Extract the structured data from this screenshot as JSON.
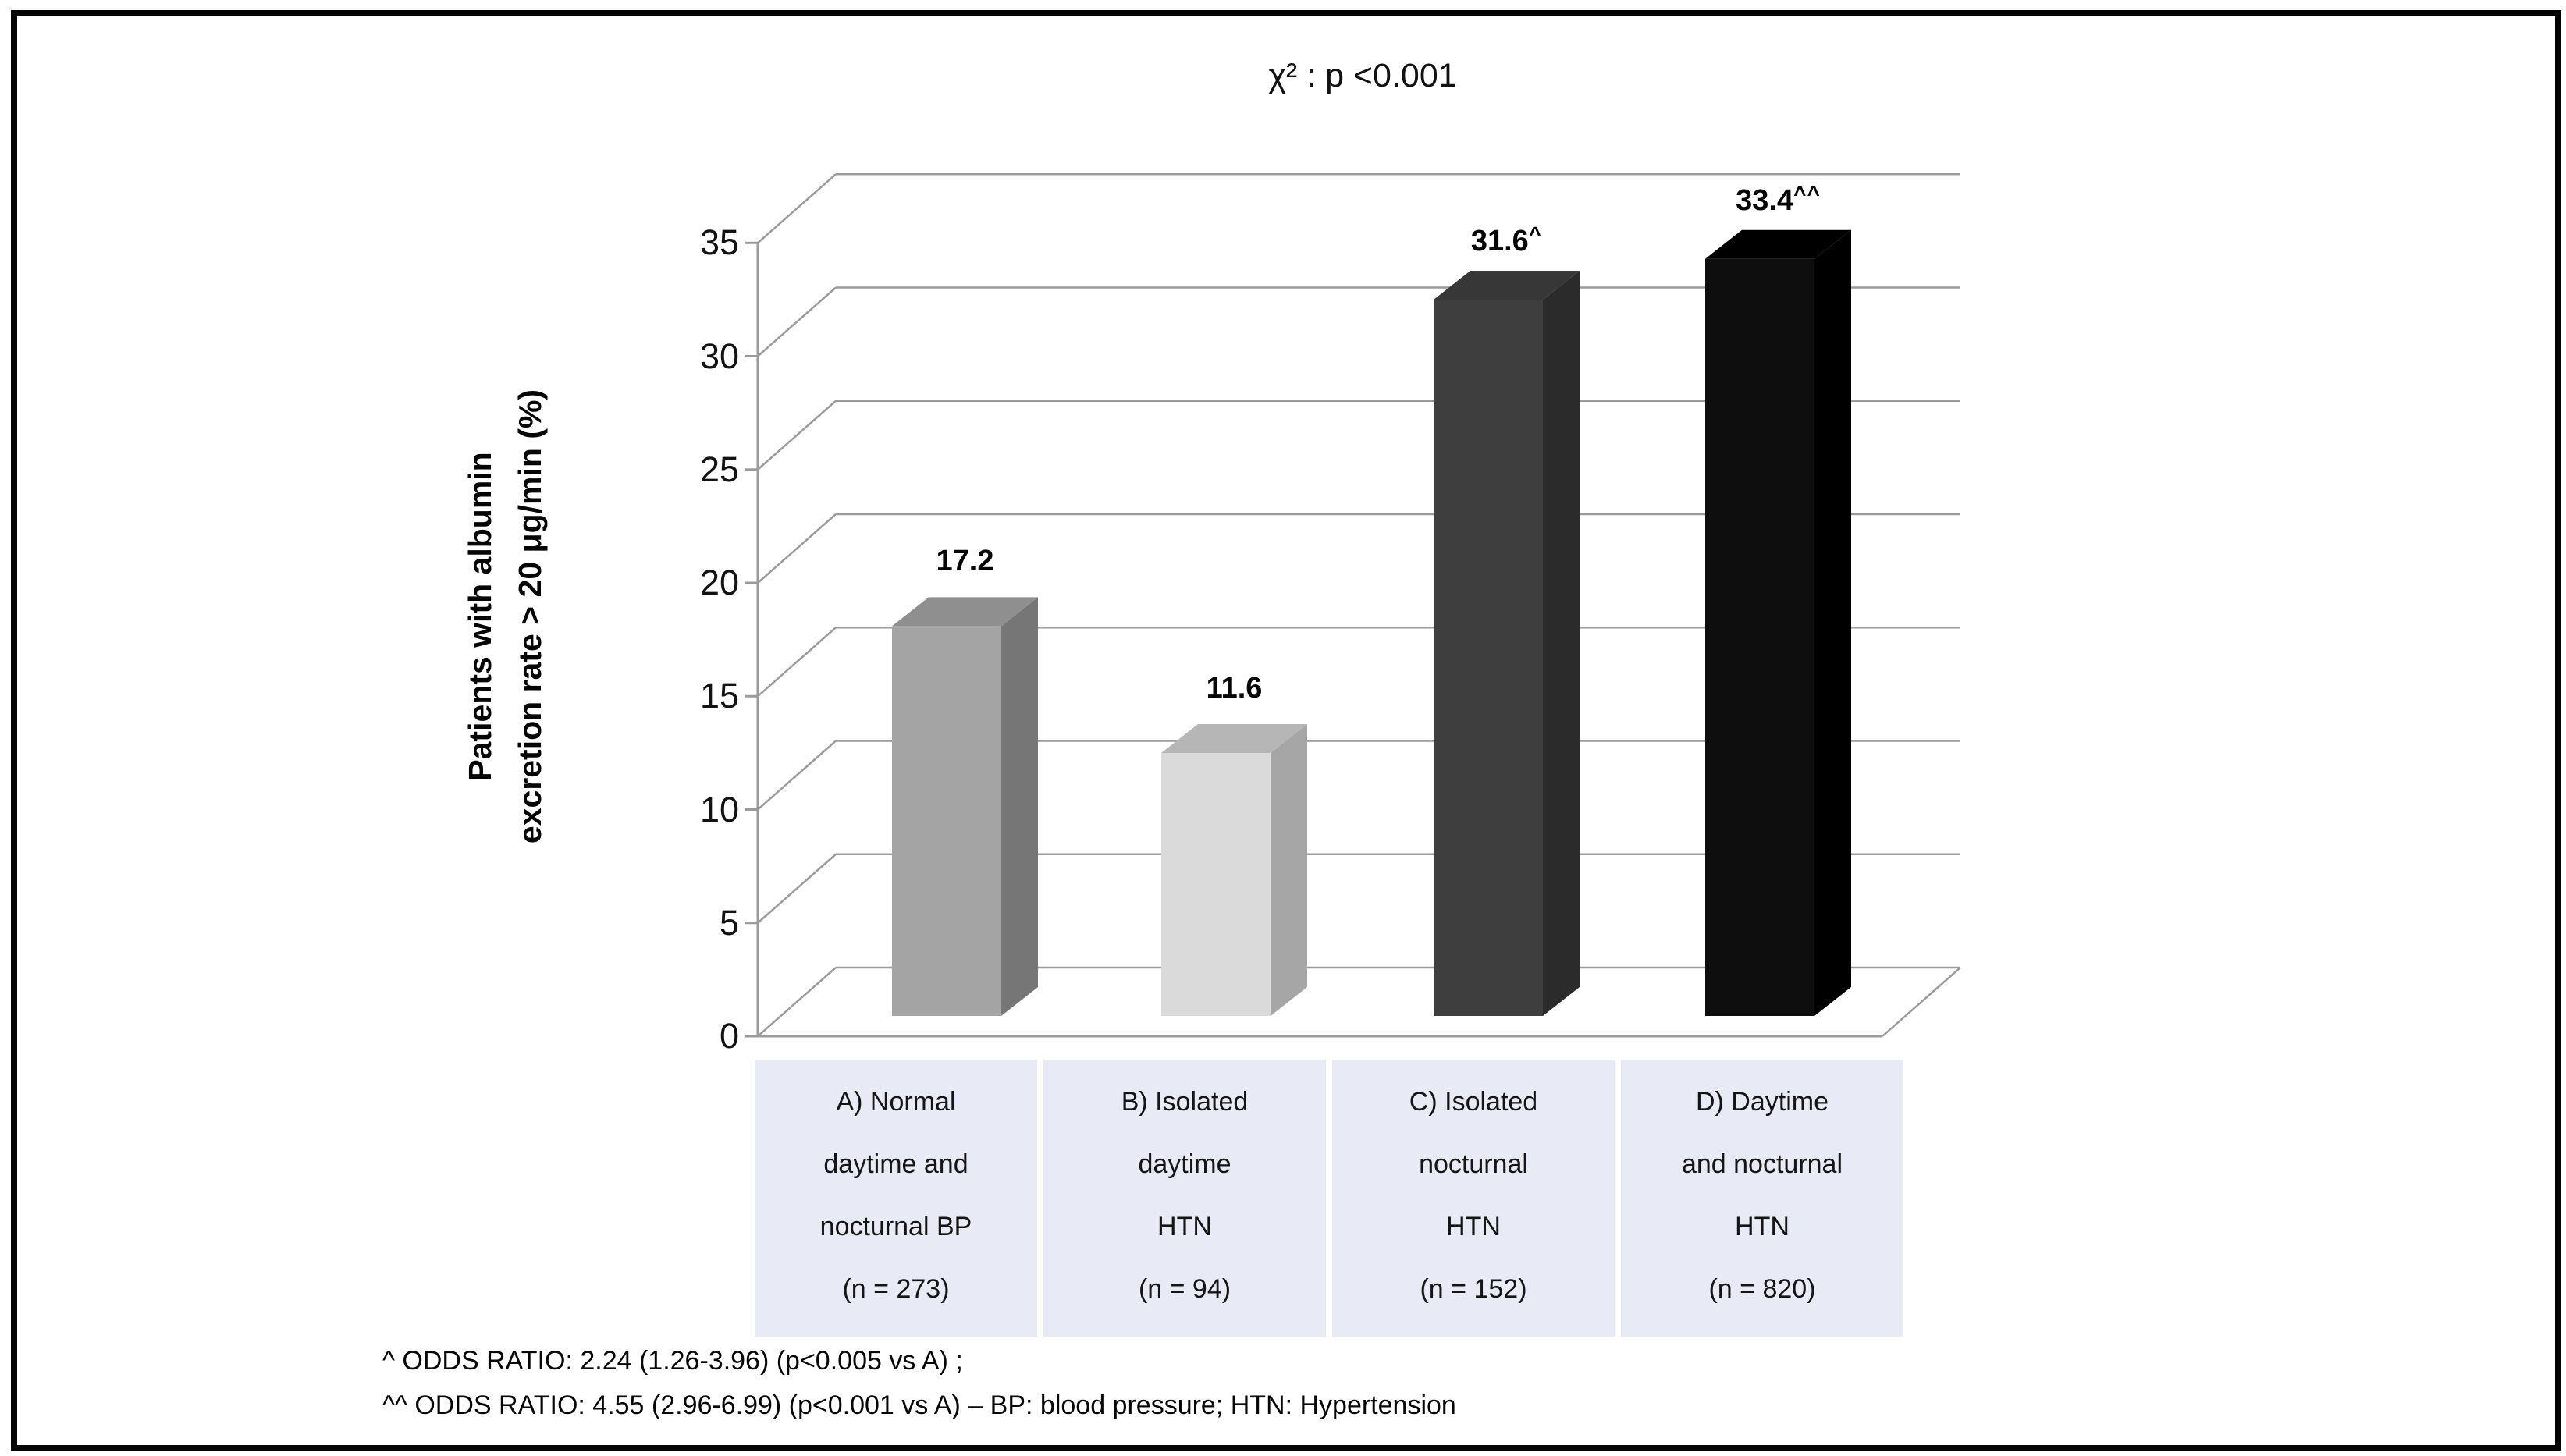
{
  "chart_data": {
    "type": "bar",
    "style": "3d-column",
    "title": "χ² : p <0.001",
    "xlabel": "",
    "ylabel": "Patients with albumin excretion rate > 20 μg/min (%)",
    "ylabel_lines": [
      "Patients with albumin",
      "excretion rate > 20 μg/min (%)"
    ],
    "ylim": [
      0,
      35
    ],
    "yticks": [
      0,
      5,
      10,
      15,
      20,
      25,
      30,
      35
    ],
    "grid": true,
    "legend": false,
    "categories": [
      "A) Normal daytime and nocturnal BP (n = 273)",
      "B) Isolated daytime HTN (n = 94)",
      "C) Isolated nocturnal HTN (n = 152)",
      "D) Daytime and nocturnal HTN (n = 820)"
    ],
    "category_lines": [
      [
        "A) Normal",
        "daytime and",
        "nocturnal BP",
        "(n = 273)"
      ],
      [
        "B) Isolated",
        "daytime",
        "HTN",
        "(n = 94)"
      ],
      [
        "C) Isolated",
        "nocturnal",
        "HTN",
        "(n = 152)"
      ],
      [
        "D) Daytime",
        "and nocturnal",
        "HTN",
        "(n = 820)"
      ]
    ],
    "values": [
      17.2,
      11.6,
      31.6,
      33.4
    ],
    "data_labels": [
      "17.2",
      "11.6",
      "31.6",
      "33.4"
    ],
    "data_label_superscripts": [
      "",
      "",
      "^",
      "^^"
    ],
    "bar_colors": [
      {
        "front": "#a4a4a4",
        "top": "#8f8f8f",
        "side": "#767676"
      },
      {
        "front": "#dadada",
        "top": "#b6b6b6",
        "side": "#a6a6a6"
      },
      {
        "front": "#3e3e3e",
        "top": "#373737",
        "side": "#2b2b2b"
      },
      {
        "front": "#0e0e0e",
        "top": "#000000",
        "side": "#000000"
      }
    ],
    "category_band_color": "#e8eaf5",
    "gridline_color": "#9b9b9b",
    "annotations": [
      "^ ODDS RATIO: 2.24 (1.26-3.96) (p<0.005 vs A) ;",
      "^^ ODDS RATIO: 4.55 (2.96-6.99) (p<0.001 vs A)  – BP: blood pressure; HTN: Hypertension"
    ]
  }
}
